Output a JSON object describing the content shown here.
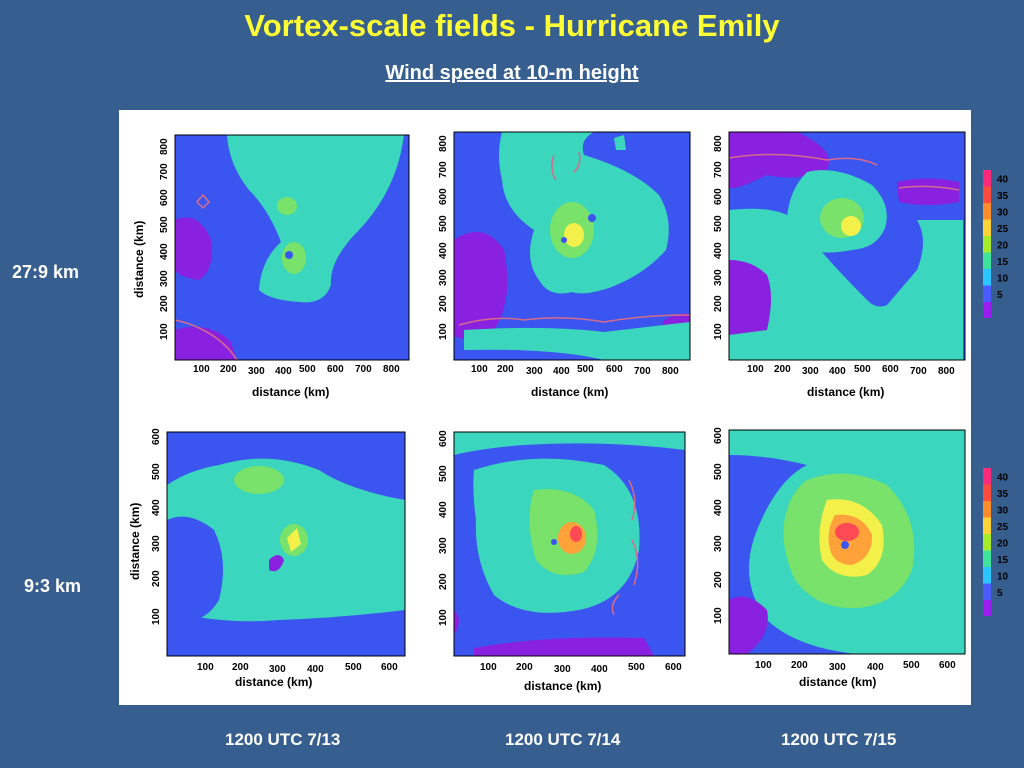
{
  "title": "Vortex-scale fields - Hurricane Emily",
  "subtitle": "Wind speed at 10-m height",
  "row_labels": [
    "27:9 km",
    "9:3 km"
  ],
  "column_labels": [
    "1200 UTC 7/13",
    "1200 UTC 7/14",
    "1200 UTC 7/15"
  ],
  "axis_label": "distance (km)",
  "top_row_ticks": [
    "100",
    "200",
    "300",
    "400",
    "500",
    "600",
    "700",
    "800"
  ],
  "bottom_row_ticks": [
    "100",
    "200",
    "300",
    "400",
    "500",
    "600"
  ],
  "colorbar": {
    "levels": [
      "40",
      "35",
      "30",
      "25",
      "20",
      "15",
      "10",
      "5"
    ],
    "colors": [
      "#ff2a7a",
      "#ff4c3c",
      "#ff8c2a",
      "#ffd23a",
      "#a6ec2a",
      "#3fe39e",
      "#2bc6ff",
      "#4a5cff",
      "#9b1cf0"
    ]
  },
  "fill_colors": {
    "low": "#3a55f0",
    "purple": "#8a20e0",
    "teal": "#3ad6bd",
    "green": "#78e26a",
    "yellow": "#f3f04a",
    "orange": "#ffa23a",
    "red": "#ff4a55",
    "coast": "#d86a8a"
  }
}
